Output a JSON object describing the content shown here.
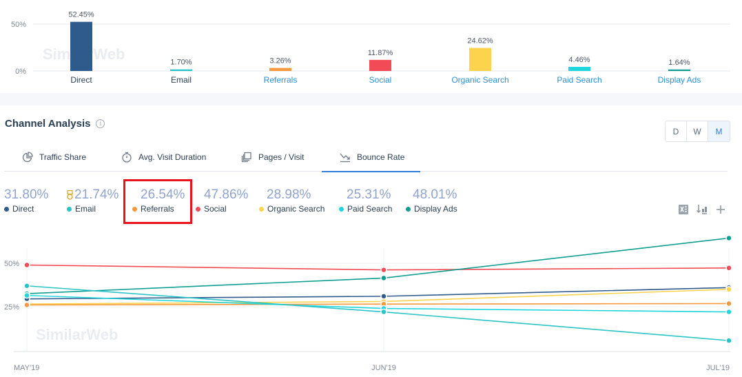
{
  "top_chart": {
    "watermark": "SimilarWeb",
    "y_ticks": [
      "50%",
      "0%"
    ],
    "channels": [
      {
        "name": "Direct",
        "label": "52.45%",
        "value": 52.45,
        "color": "#2f5b8c",
        "link": false
      },
      {
        "name": "Email",
        "label": "1.70%",
        "value": 1.7,
        "color": "#29c4c9",
        "link": false
      },
      {
        "name": "Referrals",
        "label": "3.26%",
        "value": 3.26,
        "color": "#f4993e",
        "link": true
      },
      {
        "name": "Social",
        "label": "11.87%",
        "value": 11.87,
        "color": "#f24b55",
        "link": true
      },
      {
        "name": "Organic Search",
        "label": "24.62%",
        "value": 24.62,
        "color": "#fcd34d",
        "link": true
      },
      {
        "name": "Paid Search",
        "label": "4.46%",
        "value": 4.46,
        "color": "#1fd6dd",
        "link": true
      },
      {
        "name": "Display Ads",
        "label": "1.64%",
        "value": 1.64,
        "color": "#0e9e92",
        "link": true
      }
    ],
    "link_color": "#2b8fd6",
    "text_color": "#2a3e52"
  },
  "section": {
    "title": "Channel Analysis",
    "info_icon": "i"
  },
  "granularity": {
    "options": [
      "D",
      "W",
      "M"
    ],
    "active": "M"
  },
  "tabs": [
    {
      "label": "Traffic Share",
      "icon": "pie-chart-icon",
      "active": false
    },
    {
      "label": "Avg. Visit Duration",
      "icon": "stopwatch-icon",
      "active": false
    },
    {
      "label": "Pages / Visit",
      "icon": "pages-icon",
      "active": false
    },
    {
      "label": "Bounce Rate",
      "icon": "bounce-rate-icon",
      "active": true
    }
  ],
  "legend": [
    {
      "value": "31.80%",
      "name": "Direct",
      "color": "#2f5b8c",
      "medal": false
    },
    {
      "value": "21.74%",
      "name": "Email",
      "color": "#29c4c9",
      "medal": true
    },
    {
      "value": "26.54%",
      "name": "Referrals",
      "color": "#f4993e",
      "medal": false
    },
    {
      "value": "47.86%",
      "name": "Social",
      "color": "#f24b55",
      "medal": false
    },
    {
      "value": "28.98%",
      "name": "Organic Search",
      "color": "#fcd34d",
      "medal": false
    },
    {
      "value": "25.31%",
      "name": "Paid Search",
      "color": "#1fd6dd",
      "medal": false
    },
    {
      "value": "48.01%",
      "name": "Display Ads",
      "color": "#0e9e92",
      "medal": false
    }
  ],
  "chart_data": {
    "type": "line",
    "x": [
      "MAY'19",
      "JUN'19",
      "JUL'19"
    ],
    "y_ticks": [
      "50%",
      "25%"
    ],
    "ylim": [
      0,
      75
    ],
    "grid": true,
    "watermark": "SimilarWeb",
    "series": [
      {
        "name": "Social",
        "color": "#f24b55",
        "values": [
          49,
          46.2,
          47.3
        ]
      },
      {
        "name": "Display Ads",
        "color": "#0e9e92",
        "values": [
          32.5,
          41.5,
          64.5
        ]
      },
      {
        "name": "Direct",
        "color": "#2f5b8c",
        "values": [
          29.5,
          31,
          36
        ]
      },
      {
        "name": "Organic Search",
        "color": "#fcd34d",
        "values": [
          26.5,
          28,
          35
        ]
      },
      {
        "name": "Referrals",
        "color": "#f4993e",
        "values": [
          26,
          26.5,
          26.8
        ]
      },
      {
        "name": "Paid Search",
        "color": "#1fd6dd",
        "values": [
          31.5,
          24,
          22
        ]
      },
      {
        "name": "Email",
        "color": "#29c4c9",
        "values": [
          37,
          22,
          5.5
        ]
      }
    ]
  }
}
